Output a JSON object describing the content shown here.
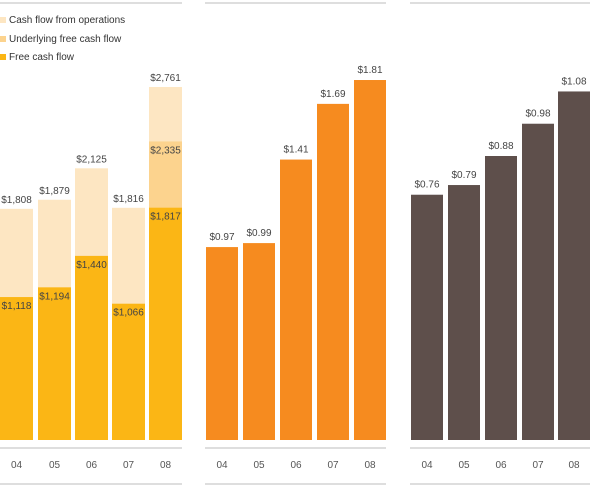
{
  "chart_data": [
    {
      "type": "bar",
      "stacked_overlay": true,
      "categories": [
        "04",
        "05",
        "06",
        "07",
        "08"
      ],
      "legend_position": "top-left",
      "series": [
        {
          "name": "Cash flow from operations",
          "color": "#fde6c2",
          "values": [
            1808,
            1879,
            2125,
            1816,
            2761
          ],
          "labels": [
            "$1,808",
            "$1,879",
            "$2,125",
            "$1,816",
            "$2,761"
          ]
        },
        {
          "name": "Underlying free cash flow",
          "color": "#fcd38e",
          "values": [
            null,
            null,
            null,
            null,
            2335
          ],
          "labels": [
            "",
            "",
            "",
            "",
            "$2,335"
          ]
        },
        {
          "name": "Free cash flow",
          "color": "#fbb615",
          "values": [
            1118,
            1194,
            1440,
            1066,
            1817
          ],
          "labels": [
            "$1,118",
            "$1,194",
            "$1,440",
            "$1,066",
            "$1,817"
          ]
        }
      ],
      "ylim": [
        0,
        2800
      ]
    },
    {
      "type": "bar",
      "categories": [
        "04",
        "05",
        "06",
        "07",
        "08"
      ],
      "series": [
        {
          "color": "#f68b1f",
          "values": [
            0.97,
            0.99,
            1.41,
            1.69,
            1.81
          ],
          "labels": [
            "$0.97",
            "$0.99",
            "$1.41",
            "$1.69",
            "$1.81"
          ]
        }
      ],
      "ylim": [
        0,
        1.8
      ]
    },
    {
      "type": "bar",
      "categories": [
        "04",
        "05",
        "06",
        "07",
        "08"
      ],
      "series": [
        {
          "color": "#5e4f4b",
          "values": [
            0.76,
            0.79,
            0.88,
            0.98,
            1.08
          ],
          "labels": [
            "$0.76",
            "$0.79",
            "$0.88",
            "$0.98",
            "$1.08"
          ]
        }
      ],
      "ylim": [
        0,
        1.1
      ]
    }
  ]
}
